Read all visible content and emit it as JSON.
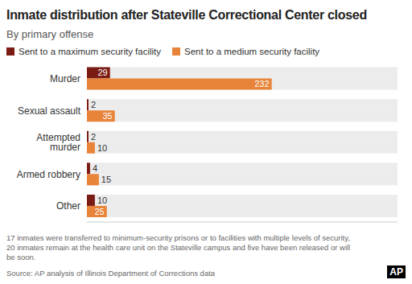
{
  "chart_data": {
    "type": "bar",
    "title": "Inmate distribution after Stateville Correctional Center closed",
    "subtitle": "By primary offense",
    "orientation": "horizontal",
    "categories": [
      "Murder",
      "Sexual assault",
      "Attempted murder",
      "Armed robbery",
      "Other"
    ],
    "series": [
      {
        "name": "Sent to a maximum security facility",
        "color": "#7b1c14",
        "values": [
          29,
          2,
          2,
          4,
          10
        ]
      },
      {
        "name": "Sent to a medium security facility",
        "color": "#e8833a",
        "values": [
          232,
          35,
          10,
          15,
          25
        ]
      }
    ],
    "xlim": [
      0,
      390
    ],
    "grid": false,
    "legend": "top",
    "data_labels": true,
    "tick_labels": "y",
    "note": "17 inmates were transferred to minimum-security prisons or to facilities with multiple levels of security, 20 inmates remain at the health care unit on the Stateville campus and five have been released or will be soon.",
    "source": "Source: AP analysis of Illinois Department of Corrections data",
    "logo": "AP"
  }
}
